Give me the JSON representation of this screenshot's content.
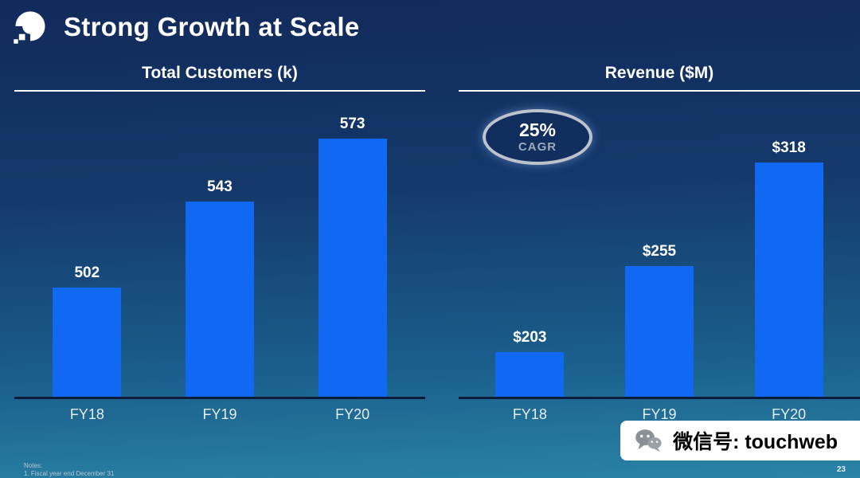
{
  "header": {
    "title": "Strong Growth at Scale"
  },
  "chart_data": [
    {
      "type": "bar",
      "title": "Total Customers (k)",
      "categories": [
        "FY18",
        "FY19",
        "FY20"
      ],
      "values": [
        502,
        543,
        573
      ],
      "value_labels": [
        "502",
        "543",
        "573"
      ],
      "ylim": [
        450,
        594
      ],
      "bar_color": "#1168f2",
      "grid": false,
      "legend": false
    },
    {
      "type": "bar",
      "title": "Revenue ($M)",
      "categories": [
        "FY18",
        "FY19",
        "FY20"
      ],
      "values": [
        203,
        255,
        318
      ],
      "value_labels": [
        "$203",
        "$255",
        "$318"
      ],
      "ylim": [
        176,
        359
      ],
      "bar_color": "#1168f2",
      "annotation": {
        "value": "25%",
        "label": "CAGR"
      },
      "grid": false,
      "legend": false
    }
  ],
  "footer": {
    "notes_label": "Notes:",
    "notes_items": [
      "1.    Fiscal year end December 31"
    ],
    "page_number": "23"
  },
  "watermark": {
    "text": "微信号: touchweb"
  },
  "colors": {
    "bar": "#1168f2",
    "background_top": "#112a5b",
    "background_bottom": "#2a84a6",
    "baseline": "#0b1d3a",
    "cagr_border": "#bcc3cd"
  }
}
